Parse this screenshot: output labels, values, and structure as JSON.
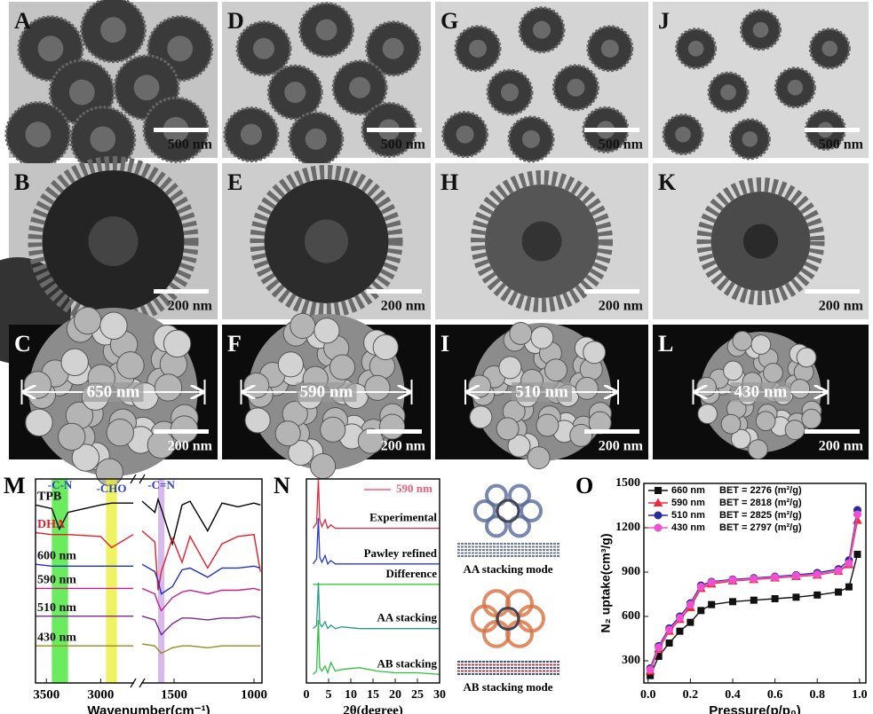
{
  "panels": [
    {
      "label": "A",
      "scale": "500 nm"
    },
    {
      "label": "B",
      "scale": "200 nm"
    },
    {
      "label": "C",
      "scale": "200 nm",
      "size": "650 nm"
    },
    {
      "label": "D",
      "scale": "500 nm"
    },
    {
      "label": "E",
      "scale": "200 nm"
    },
    {
      "label": "F",
      "scale": "200 nm",
      "size": "590 nm"
    },
    {
      "label": "G",
      "scale": "500 nm"
    },
    {
      "label": "H",
      "scale": "200 nm"
    },
    {
      "label": "I",
      "scale": "200 nm",
      "size": "510 nm"
    },
    {
      "label": "J",
      "scale": "500 nm"
    },
    {
      "label": "K",
      "scale": "200 nm"
    },
    {
      "label": "L",
      "scale": "200 nm",
      "size": "430 nm"
    }
  ],
  "chart_data": [
    {
      "type": "line",
      "label": "M",
      "xlabel": "Wavenumber(cm⁻¹)",
      "x": [
        3600,
        3450,
        3380,
        3300,
        3000,
        2900,
        2700,
        1700,
        1620,
        1600,
        1580,
        1510,
        1450,
        1400,
        1290,
        1200,
        1100,
        1000,
        960
      ],
      "xlim": [
        3600,
        950
      ],
      "xbreak": [
        2700,
        1700
      ],
      "xticks": [
        3500,
        3000,
        1500,
        1000
      ],
      "ylim": [
        0,
        11
      ],
      "bands": [
        {
          "label": "-C-N",
          "from": 3450,
          "to": 3300,
          "color": "#39e62a"
        },
        {
          "label": "-CHO",
          "from": 2950,
          "to": 2850,
          "color": "#e8ef2c"
        },
        {
          "label": "-C=N",
          "from": 1600,
          "to": 1560,
          "color": "#c9a2e6"
        }
      ],
      "series": [
        {
          "name": "TPB",
          "color": "#000000",
          "values": [
            9.6,
            9.4,
            8.3,
            9.2,
            9.6,
            9.7,
            9.7,
            9.8,
            9.2,
            9.9,
            9.4,
            7.5,
            9.6,
            9.8,
            8.2,
            9.7,
            9.5,
            9.7,
            9.6
          ]
        },
        {
          "name": "DHA",
          "color": "#e0202a",
          "values": [
            8.1,
            8.0,
            8.0,
            8.0,
            7.9,
            7.3,
            8.0,
            8.2,
            7.6,
            5.0,
            6.0,
            7.8,
            6.5,
            7.9,
            6.2,
            7.5,
            7.9,
            8.0,
            6.0
          ]
        },
        {
          "name": "600 nm",
          "color": "#2030c0",
          "values": [
            6.4,
            6.3,
            6.3,
            6.3,
            6.3,
            6.3,
            6.3,
            6.4,
            6.0,
            5.5,
            4.8,
            5.2,
            6.1,
            6.2,
            5.7,
            6.2,
            6.2,
            6.3,
            6.2
          ]
        },
        {
          "name": "590 nm",
          "color": "#c0208a",
          "values": [
            5.1,
            5.1,
            5.1,
            5.1,
            5.1,
            5.1,
            5.1,
            5.1,
            4.8,
            4.3,
            3.9,
            4.6,
            4.9,
            5.0,
            4.8,
            5.0,
            5.0,
            5.1,
            5.0
          ]
        },
        {
          "name": "510 nm",
          "color": "#7a2a8a",
          "values": [
            3.6,
            3.6,
            3.6,
            3.6,
            3.6,
            3.6,
            3.6,
            3.6,
            3.4,
            3.0,
            2.6,
            3.2,
            3.5,
            3.5,
            3.4,
            3.5,
            3.5,
            3.6,
            3.5
          ]
        },
        {
          "name": "430 nm",
          "color": "#9a8a20",
          "values": [
            2.0,
            2.0,
            2.0,
            2.0,
            2.0,
            2.0,
            2.0,
            2.1,
            2.0,
            1.8,
            1.6,
            1.9,
            2.0,
            2.0,
            1.9,
            2.0,
            2.0,
            2.0,
            2.0
          ]
        }
      ]
    },
    {
      "type": "line",
      "label": "N",
      "xlabel": "2θ(degree)",
      "legend": "590 nm",
      "legend_color": "#f0607a",
      "x": [
        1.5,
        2.3,
        2.7,
        3.0,
        3.5,
        4.2,
        4.8,
        5.5,
        6.5,
        8,
        12,
        16,
        20,
        25,
        30
      ],
      "xlim": [
        0,
        30
      ],
      "xticks": [
        0,
        5,
        10,
        15,
        20,
        25,
        30
      ],
      "ylim": [
        0,
        12
      ],
      "images": [
        "AA stacking mode",
        "AB stacking mode"
      ],
      "series": [
        {
          "name": "Experimental",
          "color": "#e02a3a",
          "values": [
            9.1,
            9.4,
            12,
            9.6,
            9.2,
            9.6,
            9.1,
            9.3,
            9.1,
            9.1,
            9.1,
            9.1,
            9.1,
            9.1,
            9.1
          ]
        },
        {
          "name": "Pawley refined",
          "color": "#2a3ad0",
          "values": [
            7.0,
            7.3,
            9.7,
            7.4,
            7.1,
            7.5,
            7.0,
            7.2,
            7.0,
            7.0,
            7.0,
            7.0,
            7.0,
            7.0,
            7.0
          ]
        },
        {
          "name": "Difference",
          "color": "#30d030",
          "values": [
            5.8,
            5.8,
            5.8,
            5.8,
            5.8,
            5.8,
            5.8,
            5.8,
            5.8,
            5.8,
            5.8,
            5.8,
            5.8,
            5.8,
            5.8
          ]
        },
        {
          "name": "AA stacking",
          "color": "#2a9a8a",
          "values": [
            3.2,
            3.4,
            5.9,
            3.5,
            3.3,
            3.6,
            3.2,
            3.4,
            3.2,
            3.3,
            3.2,
            3.2,
            3.2,
            3.2,
            3.2
          ]
        },
        {
          "name": "AB stacking",
          "color": "#30c040",
          "values": [
            0.5,
            0.7,
            3.7,
            0.9,
            0.7,
            1.0,
            0.6,
            1.2,
            0.7,
            0.8,
            0.9,
            0.7,
            0.6,
            0.6,
            0.5
          ]
        }
      ]
    },
    {
      "type": "line",
      "label": "O",
      "xlabel": "Pressure(p/p₀)",
      "ylabel": "N₂ uptake(cm³/g)",
      "x": [
        0.01,
        0.05,
        0.1,
        0.15,
        0.2,
        0.25,
        0.3,
        0.4,
        0.5,
        0.6,
        0.7,
        0.8,
        0.9,
        0.95,
        0.99
      ],
      "xlim": [
        -0.02,
        1.03
      ],
      "ylim": [
        150,
        1500
      ],
      "xticks": [
        {
          "value": 0,
          "label": "0.0"
        },
        {
          "value": 0.2,
          "label": "0.2"
        },
        {
          "value": 0.4,
          "label": "0.4"
        },
        {
          "value": 0.6,
          "label": "0.6"
        },
        {
          "value": 0.8,
          "label": "0.8"
        },
        {
          "value": 1,
          "label": "1.0"
        }
      ],
      "yticks": [
        300,
        600,
        900,
        1200,
        1500
      ],
      "series": [
        {
          "name": "660 nm",
          "bet": "BET = 2276 (m²/g)",
          "marker": "square",
          "color": "#111111",
          "values": [
            200,
            330,
            420,
            500,
            560,
            640,
            680,
            700,
            710,
            720,
            730,
            745,
            765,
            800,
            1020
          ]
        },
        {
          "name": "590 nm",
          "bet": "BET = 2818 (m²/g)",
          "marker": "triangle",
          "color": "#f02a3a",
          "values": [
            230,
            380,
            500,
            580,
            660,
            790,
            820,
            840,
            850,
            860,
            870,
            880,
            905,
            950,
            1250
          ]
        },
        {
          "name": "510 nm",
          "bet": "BET = 2825 (m²/g)",
          "marker": "circle",
          "color": "#2a2aa0",
          "values": [
            250,
            400,
            520,
            600,
            690,
            810,
            835,
            850,
            860,
            870,
            880,
            895,
            920,
            980,
            1320
          ]
        },
        {
          "name": "430 nm",
          "bet": "BET = 2797 (m²/g)",
          "marker": "circle",
          "color": "#f050d0",
          "values": [
            240,
            390,
            510,
            590,
            680,
            800,
            830,
            845,
            855,
            865,
            875,
            885,
            910,
            960,
            1290
          ]
        }
      ]
    }
  ]
}
